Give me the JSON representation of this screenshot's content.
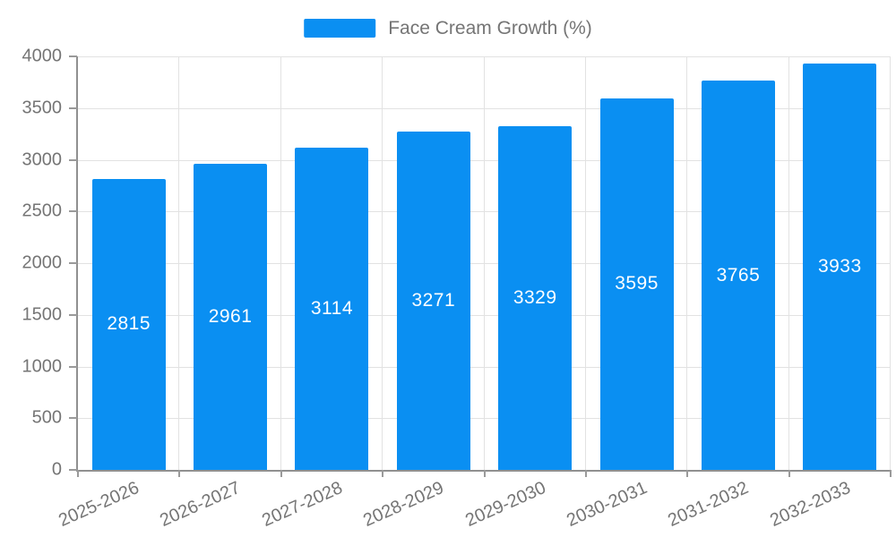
{
  "chart_data": {
    "type": "bar",
    "title": "",
    "legend": "Face Cream Growth (%)",
    "legend_position": "top-center",
    "categories": [
      "2025-2026",
      "2026-2027",
      "2027-2028",
      "2028-2029",
      "2029-2030",
      "2030-2031",
      "2031-2032",
      "2032-2033"
    ],
    "values": [
      2815,
      2961,
      3114,
      3271,
      3329,
      3595,
      3765,
      3933
    ],
    "xlabel": "",
    "ylabel": "",
    "ylim": [
      0,
      4000
    ],
    "ytick_step": 500,
    "yticks": [
      0,
      500,
      1000,
      1500,
      2000,
      2500,
      3000,
      3500,
      4000
    ],
    "grid": true,
    "bar_value_labels_inside": true,
    "colors": {
      "bar": "#0a8ff2",
      "bar_value_label": "#ffffff",
      "axis_text": "#757575",
      "legend_text": "#757575",
      "gridline": "#e2e2e2",
      "axis_line": "#909090",
      "tick": "#9a9a9a",
      "background": "#ffffff"
    }
  }
}
